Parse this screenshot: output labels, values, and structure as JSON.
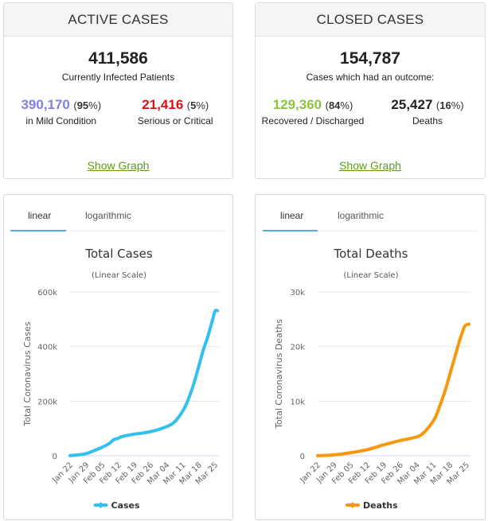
{
  "active_cases": {
    "title": "ACTIVE CASES",
    "total": "411,586",
    "total_label": "Currently Infected Patients",
    "mild": {
      "value": "390,170",
      "pct": "95",
      "label": "in Mild Condition",
      "color": "#8080e6"
    },
    "serious": {
      "value": "21,416",
      "pct": "5",
      "label": "Serious or Critical",
      "color": "#e01010"
    },
    "show_graph": "Show Graph"
  },
  "closed_cases": {
    "title": "CLOSED CASES",
    "total": "154,787",
    "total_label": "Cases which had an outcome:",
    "recovered": {
      "value": "129,360",
      "pct": "84",
      "label": "Recovered / Discharged",
      "color": "#8ac53a"
    },
    "deaths": {
      "value": "25,427",
      "pct": "16",
      "label": "Deaths",
      "color": "#222222"
    },
    "show_graph": "Show Graph"
  },
  "pct_open": "(",
  "pct_close": "%)",
  "tabs": {
    "linear": "linear",
    "logarithmic": "logarithmic",
    "active": "linear"
  },
  "chart_data": [
    {
      "type": "line",
      "title": "Total Cases",
      "subtitle": "(Linear Scale)",
      "xlabel": "",
      "ylabel": "Total Coronavirus Cases",
      "ylim": [
        0,
        600000
      ],
      "yticks": [
        0,
        200000,
        400000,
        600000
      ],
      "ytick_labels": [
        "0",
        "200k",
        "400k",
        "600k"
      ],
      "xtick_labels": [
        "Jan 22",
        "Jan 29",
        "Feb 05",
        "Feb 12",
        "Feb 19",
        "Feb 26",
        "Mar 04",
        "Mar 11",
        "Mar 18",
        "Mar 25"
      ],
      "grid": true,
      "legend": "bottom",
      "color": "#33c0ee",
      "series": [
        {
          "name": "Cases",
          "x_days": [
            0,
            3,
            7,
            10,
            14,
            17,
            19,
            21,
            22,
            24,
            28,
            31,
            35,
            38,
            42,
            45,
            48,
            50,
            52,
            54,
            56,
            58,
            60,
            62,
            63,
            64
          ],
          "values": [
            580,
            2800,
            7800,
            17400,
            31500,
            44800,
            59000,
            64000,
            69000,
            73300,
            79500,
            82500,
            88500,
            95000,
            107000,
            121000,
            151000,
            180000,
            220000,
            270000,
            330000,
            390000,
            440000,
            500000,
            530000,
            531000
          ]
        }
      ]
    },
    {
      "type": "line",
      "title": "Total Deaths",
      "subtitle": "(Linear Scale)",
      "xlabel": "",
      "ylabel": "Total Coronavirus Deaths",
      "ylim": [
        0,
        30000
      ],
      "yticks": [
        0,
        10000,
        20000,
        30000
      ],
      "ytick_labels": [
        "0",
        "10k",
        "20k",
        "30k"
      ],
      "xtick_labels": [
        "Jan 22",
        "Jan 29",
        "Feb 05",
        "Feb 12",
        "Feb 19",
        "Feb 26",
        "Mar 04",
        "Mar 11",
        "Mar 18",
        "Mar 25"
      ],
      "grid": true,
      "legend": "bottom",
      "color": "#f7970e",
      "series": [
        {
          "name": "Deaths",
          "x_days": [
            0,
            7,
            14,
            21,
            28,
            35,
            42,
            45,
            48,
            50,
            52,
            54,
            56,
            58,
            60,
            62,
            63,
            64
          ],
          "values": [
            17,
            170,
            565,
            1115,
            2010,
            2800,
            3460,
            4260,
            5800,
            7200,
            9500,
            12000,
            15000,
            18000,
            21000,
            23500,
            24000,
            24100
          ]
        }
      ]
    }
  ]
}
